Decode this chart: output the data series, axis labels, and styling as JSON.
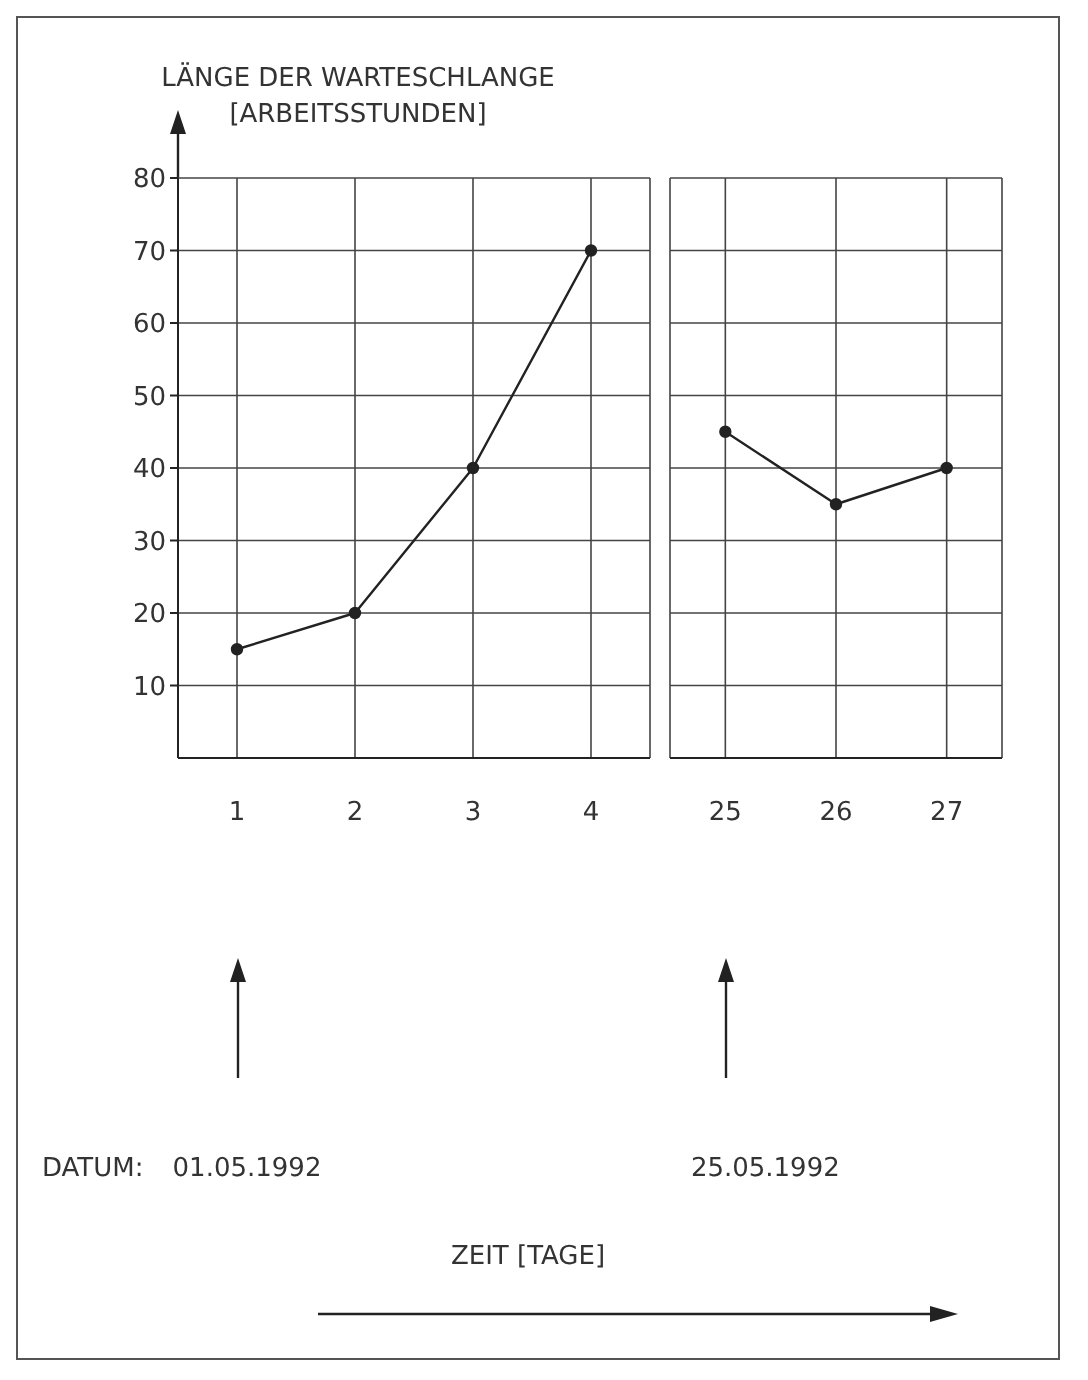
{
  "chart_data": [
    {
      "type": "line",
      "ylabel": "LÄNGE DER WARTESCHLANGE [ARBEITSSTUNDEN]",
      "categories": [
        "1",
        "2",
        "3",
        "4"
      ],
      "series": [
        {
          "color": "#222222",
          "values": [
            15,
            20,
            40,
            70
          ]
        }
      ],
      "ylim": [
        0,
        80
      ],
      "yticks": [
        10,
        20,
        30,
        40,
        50,
        60,
        70,
        80
      ],
      "grid": true,
      "marker": "circle",
      "line_style": "solid",
      "annotations": [
        "DATUM:",
        "01.05.1992",
        "ZEIT [TAGE]"
      ]
    },
    {
      "type": "line",
      "categories": [
        "25",
        "26",
        "27"
      ],
      "series": [
        {
          "color": "#222222",
          "values": [
            45,
            35,
            40
          ]
        }
      ],
      "ylim": [
        0,
        80
      ],
      "yticks": [
        10,
        20,
        30,
        40,
        50,
        60,
        70,
        80
      ],
      "tick_labels": "x",
      "grid": true,
      "marker": "circle",
      "line_style": "solid",
      "annotations": [
        "25.05.1992"
      ]
    }
  ]
}
